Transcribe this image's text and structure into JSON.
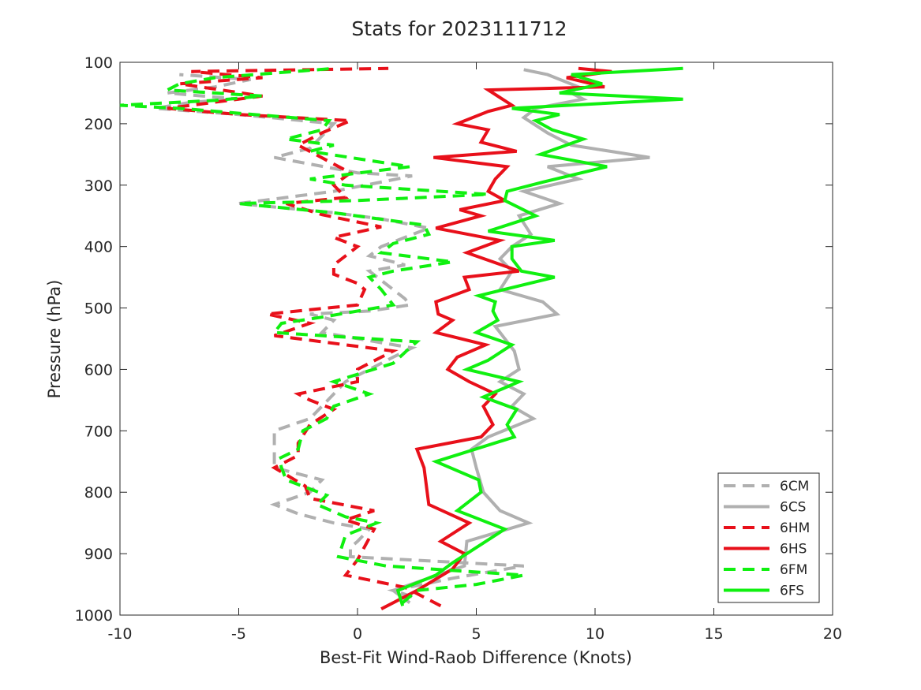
{
  "chart_data": {
    "type": "line",
    "title": "Stats for 2023111712",
    "xlabel": "Best-Fit Wind-Raob Difference (Knots)",
    "ylabel": "Pressure (hPa)",
    "xlim": [
      -10,
      20
    ],
    "ylim": [
      100,
      1000
    ],
    "y_reversed": true,
    "x_ticks": [
      "-10",
      "-5",
      "0",
      "5",
      "10",
      "15",
      "20"
    ],
    "y_ticks": [
      "100",
      "200",
      "300",
      "400",
      "500",
      "600",
      "700",
      "800",
      "900",
      "1000"
    ],
    "legend_position": "bottom-right",
    "grid": false,
    "series": [
      {
        "name": "6CM",
        "color": "#b0b0b0",
        "dashed": true,
        "points": [
          [
            2.3,
            970
          ],
          [
            1.5,
            960
          ],
          [
            4,
            940
          ],
          [
            7,
            920
          ],
          [
            -0.3,
            905
          ],
          [
            -0.3,
            890
          ],
          [
            0,
            880
          ],
          [
            0.5,
            860
          ],
          [
            -1,
            850
          ],
          [
            -2.5,
            835
          ],
          [
            -3.5,
            820
          ],
          [
            -2,
            800
          ],
          [
            -1.5,
            780
          ],
          [
            -3.5,
            760
          ],
          [
            -3.5,
            740
          ],
          [
            -3.5,
            720
          ],
          [
            -3.5,
            700
          ],
          [
            -2,
            680
          ],
          [
            -1.5,
            660
          ],
          [
            -1,
            640
          ],
          [
            -0.5,
            620
          ],
          [
            0.5,
            600
          ],
          [
            1.5,
            580
          ],
          [
            2.3,
            565
          ],
          [
            -1.5,
            540
          ],
          [
            -1,
            520
          ],
          [
            -2,
            510
          ],
          [
            0.5,
            505
          ],
          [
            2.2,
            495
          ],
          [
            2,
            485
          ],
          [
            1.5,
            470
          ],
          [
            0.5,
            440
          ],
          [
            2,
            430
          ],
          [
            0.5,
            415
          ],
          [
            1,
            400
          ],
          [
            2,
            385
          ],
          [
            3,
            370
          ],
          [
            1,
            355
          ],
          [
            -1,
            345
          ],
          [
            -5,
            330
          ],
          [
            -3,
            320
          ],
          [
            -1,
            310
          ],
          [
            1,
            295
          ],
          [
            2.3,
            285
          ],
          [
            0,
            280
          ],
          [
            -3.5,
            255
          ],
          [
            -2,
            240
          ],
          [
            -1.5,
            220
          ],
          [
            -1,
            200
          ],
          [
            -5,
            185
          ],
          [
            -8.5,
            175
          ],
          [
            -7,
            165
          ],
          [
            -5,
            160
          ],
          [
            -8,
            150
          ],
          [
            -6,
            140
          ],
          [
            -4.5,
            128
          ],
          [
            -7.5,
            120
          ]
        ]
      },
      {
        "name": "6CS",
        "color": "#b0b0b0",
        "dashed": false,
        "points": [
          [
            2.2,
            980
          ],
          [
            1.5,
            960
          ],
          [
            4.5,
            920
          ],
          [
            4.6,
            880
          ],
          [
            7.2,
            850
          ],
          [
            6,
            830
          ],
          [
            5.3,
            800
          ],
          [
            5,
            760
          ],
          [
            4.8,
            730
          ],
          [
            5.5,
            710
          ],
          [
            7.4,
            680
          ],
          [
            6.5,
            660
          ],
          [
            7,
            640
          ],
          [
            6,
            620
          ],
          [
            6.8,
            600
          ],
          [
            6.6,
            570
          ],
          [
            5.8,
            530
          ],
          [
            8.4,
            510
          ],
          [
            7.8,
            490
          ],
          [
            6,
            470
          ],
          [
            6.5,
            440
          ],
          [
            6,
            420
          ],
          [
            6.5,
            400
          ],
          [
            7.3,
            380
          ],
          [
            6.8,
            350
          ],
          [
            8.5,
            330
          ],
          [
            7,
            310
          ],
          [
            9.3,
            290
          ],
          [
            8,
            270
          ],
          [
            12.3,
            255
          ],
          [
            9,
            235
          ],
          [
            8,
            215
          ],
          [
            7,
            190
          ],
          [
            7.5,
            175
          ],
          [
            9.5,
            160
          ],
          [
            9,
            150
          ],
          [
            9.3,
            140
          ],
          [
            8,
            120
          ],
          [
            7,
            112
          ]
        ]
      },
      {
        "name": "6HM",
        "color": "#e8101a",
        "dashed": true,
        "points": [
          [
            3.5,
            985
          ],
          [
            2.5,
            965
          ],
          [
            2,
            955
          ],
          [
            -0.5,
            935
          ],
          [
            0,
            910
          ],
          [
            0.7,
            860
          ],
          [
            -0.5,
            845
          ],
          [
            0.7,
            830
          ],
          [
            -2,
            810
          ],
          [
            -2.2,
            790
          ],
          [
            -3.5,
            760
          ],
          [
            -2.5,
            740
          ],
          [
            -2.5,
            720
          ],
          [
            -2,
            690
          ],
          [
            -1,
            665
          ],
          [
            -2,
            650
          ],
          [
            -2.5,
            640
          ],
          [
            0,
            620
          ],
          [
            0,
            600
          ],
          [
            1.5,
            570
          ],
          [
            -3.5,
            545
          ],
          [
            -2,
            525
          ],
          [
            -3.8,
            510
          ],
          [
            0,
            495
          ],
          [
            0.3,
            470
          ],
          [
            0,
            460
          ],
          [
            -1,
            445
          ],
          [
            -1,
            430
          ],
          [
            -0.5,
            415
          ],
          [
            0,
            400
          ],
          [
            -1,
            385
          ],
          [
            1,
            368
          ],
          [
            -1.5,
            348
          ],
          [
            -3,
            330
          ],
          [
            -0.5,
            320
          ],
          [
            -1,
            300
          ],
          [
            -0.3,
            280
          ],
          [
            -2.5,
            235
          ],
          [
            -1.5,
            215
          ],
          [
            -0.3,
            195
          ],
          [
            -5,
            185
          ],
          [
            -8,
            175
          ],
          [
            -6,
            165
          ],
          [
            -4,
            155
          ],
          [
            -7.5,
            135
          ],
          [
            -4,
            125
          ],
          [
            -7,
            115
          ],
          [
            1.3,
            110
          ]
        ]
      },
      {
        "name": "6HS",
        "color": "#e8101a",
        "dashed": false,
        "points": [
          [
            1,
            990
          ],
          [
            2.5,
            960
          ],
          [
            4,
            925
          ],
          [
            4.5,
            900
          ],
          [
            3.5,
            880
          ],
          [
            4.7,
            850
          ],
          [
            3,
            820
          ],
          [
            2.9,
            790
          ],
          [
            2.8,
            760
          ],
          [
            2.5,
            730
          ],
          [
            5.2,
            710
          ],
          [
            5.7,
            690
          ],
          [
            5.3,
            660
          ],
          [
            5.8,
            640
          ],
          [
            4.7,
            620
          ],
          [
            3.8,
            600
          ],
          [
            4.2,
            580
          ],
          [
            5.4,
            560
          ],
          [
            3.3,
            540
          ],
          [
            4,
            520
          ],
          [
            3.4,
            510
          ],
          [
            3.3,
            490
          ],
          [
            4.7,
            470
          ],
          [
            4.5,
            450
          ],
          [
            6.8,
            440
          ],
          [
            4.6,
            410
          ],
          [
            6,
            390
          ],
          [
            3.3,
            370
          ],
          [
            5.2,
            350
          ],
          [
            4.3,
            340
          ],
          [
            6.2,
            325
          ],
          [
            5.5,
            310
          ],
          [
            5.8,
            290
          ],
          [
            6.3,
            270
          ],
          [
            3.2,
            255
          ],
          [
            6.7,
            245
          ],
          [
            5.2,
            230
          ],
          [
            5.5,
            210
          ],
          [
            4.2,
            200
          ],
          [
            5.5,
            180
          ],
          [
            6.5,
            170
          ],
          [
            5.5,
            145
          ],
          [
            10.4,
            140
          ],
          [
            8.8,
            125
          ],
          [
            10.7,
            115
          ],
          [
            9.3,
            110
          ]
        ]
      },
      {
        "name": "6FM",
        "color": "#10f010",
        "dashed": true,
        "points": [
          [
            1.9,
            980
          ],
          [
            2.5,
            960
          ],
          [
            5,
            950
          ],
          [
            7,
            935
          ],
          [
            1.2,
            920
          ],
          [
            -0.8,
            905
          ],
          [
            -0.5,
            870
          ],
          [
            0.8,
            850
          ],
          [
            -0.5,
            840
          ],
          [
            -1.7,
            820
          ],
          [
            -1.3,
            805
          ],
          [
            -3,
            780
          ],
          [
            -3.2,
            760
          ],
          [
            -3.3,
            745
          ],
          [
            -2.5,
            730
          ],
          [
            -2.3,
            700
          ],
          [
            -1.3,
            680
          ],
          [
            -1,
            660
          ],
          [
            0.5,
            640
          ],
          [
            -1,
            620
          ],
          [
            1.5,
            590
          ],
          [
            2.2,
            565
          ],
          [
            2.5,
            555
          ],
          [
            -3.5,
            540
          ],
          [
            -3.2,
            525
          ],
          [
            -1.5,
            515
          ],
          [
            1.5,
            495
          ],
          [
            1,
            470
          ],
          [
            0.5,
            450
          ],
          [
            1.5,
            440
          ],
          [
            4,
            425
          ],
          [
            1,
            410
          ],
          [
            1.5,
            395
          ],
          [
            3,
            380
          ],
          [
            2.8,
            365
          ],
          [
            -1,
            345
          ],
          [
            -5,
            330
          ],
          [
            0,
            325
          ],
          [
            5.5,
            315
          ],
          [
            -0.5,
            300
          ],
          [
            -2,
            290
          ],
          [
            2.2,
            270
          ],
          [
            -2,
            245
          ],
          [
            -1,
            235
          ],
          [
            -3,
            225
          ],
          [
            -1.5,
            210
          ],
          [
            -1.2,
            195
          ],
          [
            -7.5,
            175
          ],
          [
            -10,
            170
          ],
          [
            -6,
            162
          ],
          [
            -4,
            155
          ],
          [
            -8,
            145
          ],
          [
            -7.5,
            135
          ],
          [
            -6,
            125
          ],
          [
            -1,
            110
          ]
        ]
      },
      {
        "name": "6FS",
        "color": "#10f010",
        "dashed": false,
        "points": [
          [
            1.9,
            985
          ],
          [
            1.7,
            960
          ],
          [
            3.3,
            935
          ],
          [
            4,
            915
          ],
          [
            6.2,
            860
          ],
          [
            4.2,
            830
          ],
          [
            5.2,
            800
          ],
          [
            5.1,
            780
          ],
          [
            3.3,
            750
          ],
          [
            6.6,
            710
          ],
          [
            6.3,
            690
          ],
          [
            6.7,
            665
          ],
          [
            5.3,
            645
          ],
          [
            6.8,
            620
          ],
          [
            4.6,
            600
          ],
          [
            5.5,
            585
          ],
          [
            6.5,
            560
          ],
          [
            5,
            540
          ],
          [
            5.9,
            520
          ],
          [
            5.7,
            505
          ],
          [
            5.8,
            490
          ],
          [
            5.1,
            480
          ],
          [
            8.3,
            450
          ],
          [
            6.9,
            440
          ],
          [
            6.5,
            420
          ],
          [
            6.5,
            400
          ],
          [
            8.3,
            390
          ],
          [
            5.5,
            375
          ],
          [
            7.5,
            350
          ],
          [
            6.2,
            325
          ],
          [
            6.3,
            310
          ],
          [
            7.8,
            295
          ],
          [
            10.5,
            270
          ],
          [
            7.7,
            250
          ],
          [
            9.5,
            225
          ],
          [
            8.2,
            210
          ],
          [
            7.5,
            195
          ],
          [
            8.5,
            185
          ],
          [
            6.5,
            175
          ],
          [
            13.7,
            160
          ],
          [
            8.5,
            150
          ],
          [
            10.3,
            135
          ],
          [
            9,
            120
          ],
          [
            13.7,
            110
          ]
        ]
      }
    ]
  }
}
